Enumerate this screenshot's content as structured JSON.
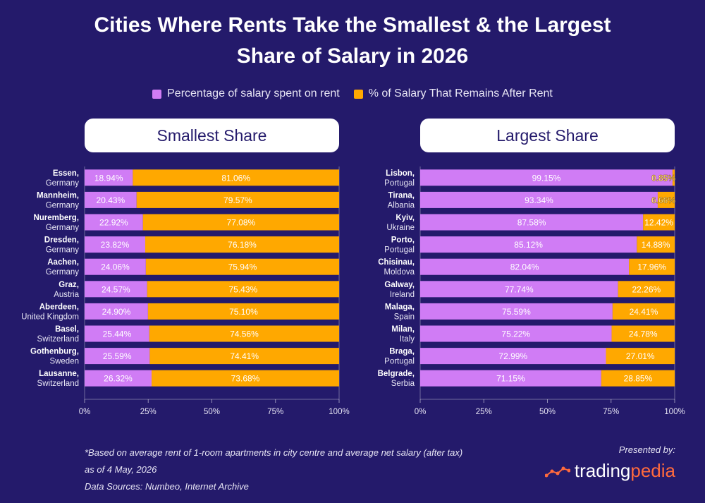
{
  "title_line1": "Cities Where Rents Take the Smallest & the Largest",
  "title_line2": "Share of Salary in 2026",
  "legend": [
    {
      "label": "Percentage of salary spent on rent",
      "color": "#d07cf5"
    },
    {
      "label": "% of Salary That Remains After Rent",
      "color": "#ffa800"
    }
  ],
  "colors": {
    "rent": "#d07cf5",
    "remain": "#ffa800",
    "background": "#241a6b",
    "remain_label_small": "#ffe17a"
  },
  "chart_data": [
    {
      "type": "bar",
      "orientation": "horizontal",
      "stacked": true,
      "title": "Smallest Share",
      "xlim": [
        0,
        100
      ],
      "x_ticks": [
        "0%",
        "25%",
        "50%",
        "75%",
        "100%"
      ],
      "categories": [
        {
          "city": "Essen,",
          "country": "Germany"
        },
        {
          "city": "Mannheim,",
          "country": "Germany"
        },
        {
          "city": "Nuremberg,",
          "country": "Germany"
        },
        {
          "city": "Dresden,",
          "country": "Germany"
        },
        {
          "city": "Aachen,",
          "country": "Germany"
        },
        {
          "city": "Graz,",
          "country": "Austria"
        },
        {
          "city": "Aberdeen,",
          "country": "United Kingdom"
        },
        {
          "city": "Basel,",
          "country": "Switzerland"
        },
        {
          "city": "Gothenburg,",
          "country": "Sweden"
        },
        {
          "city": "Lausanne,",
          "country": "Switzerland"
        }
      ],
      "series": [
        {
          "name": "Percentage of salary spent on rent",
          "values": [
            18.94,
            20.43,
            22.92,
            23.82,
            24.06,
            24.57,
            24.9,
            25.44,
            25.59,
            26.32
          ],
          "labels": [
            "18.94%",
            "20.43%",
            "22.92%",
            "23.82%",
            "24.06%",
            "24.57%",
            "24.90%",
            "25.44%",
            "25.59%",
            "26.32%"
          ]
        },
        {
          "name": "% of Salary That Remains After Rent",
          "values": [
            81.06,
            79.57,
            77.08,
            76.18,
            75.94,
            75.43,
            75.1,
            74.56,
            74.41,
            73.68
          ],
          "labels": [
            "81.06%",
            "79.57%",
            "77.08%",
            "76.18%",
            "75.94%",
            "75.43%",
            "75.10%",
            "74.56%",
            "74.41%",
            "73.68%"
          ]
        }
      ]
    },
    {
      "type": "bar",
      "orientation": "horizontal",
      "stacked": true,
      "title": "Largest Share",
      "xlim": [
        0,
        100
      ],
      "x_ticks": [
        "0%",
        "25%",
        "50%",
        "75%",
        "100%"
      ],
      "categories": [
        {
          "city": "Lisbon,",
          "country": "Portugal"
        },
        {
          "city": "Tirana,",
          "country": "Albania"
        },
        {
          "city": "Kyiv,",
          "country": "Ukraine"
        },
        {
          "city": "Porto,",
          "country": "Portugal"
        },
        {
          "city": "Chisinau,",
          "country": "Moldova"
        },
        {
          "city": "Galway,",
          "country": "Ireland"
        },
        {
          "city": "Malaga,",
          "country": "Spain"
        },
        {
          "city": "Milan,",
          "country": "Italy"
        },
        {
          "city": "Braga,",
          "country": "Portugal"
        },
        {
          "city": "Belgrade,",
          "country": "Serbia"
        }
      ],
      "series": [
        {
          "name": "Percentage of salary spent on rent",
          "values": [
            99.15,
            93.34,
            87.58,
            85.12,
            82.04,
            77.74,
            75.59,
            75.22,
            72.99,
            71.15
          ],
          "labels": [
            "99.15%",
            "93.34%",
            "87.58%",
            "85.12%",
            "82.04%",
            "77.74%",
            "75.59%",
            "75.22%",
            "72.99%",
            "71.15%"
          ]
        },
        {
          "name": "% of Salary That Remains After Rent",
          "values": [
            0.85,
            6.66,
            12.42,
            14.88,
            17.96,
            22.26,
            24.41,
            24.78,
            27.01,
            28.85
          ],
          "labels": [
            "0.85%",
            "6.66%",
            "12.42%",
            "14.88%",
            "17.96%",
            "22.26%",
            "24.41%",
            "24.78%",
            "27.01%",
            "28.85%"
          ]
        }
      ]
    }
  ],
  "footnote": [
    "*Based on average rent of 1-room apartments in city centre and average net salary (after tax)",
    "as of 4 May, 2026",
    "Data Sources: Numbeo, Internet Archive"
  ],
  "presented_by": "Presented by:",
  "brand": {
    "part1": "trading",
    "part2": "pedia",
    "logo_icon": "line-chart-dots-icon"
  }
}
